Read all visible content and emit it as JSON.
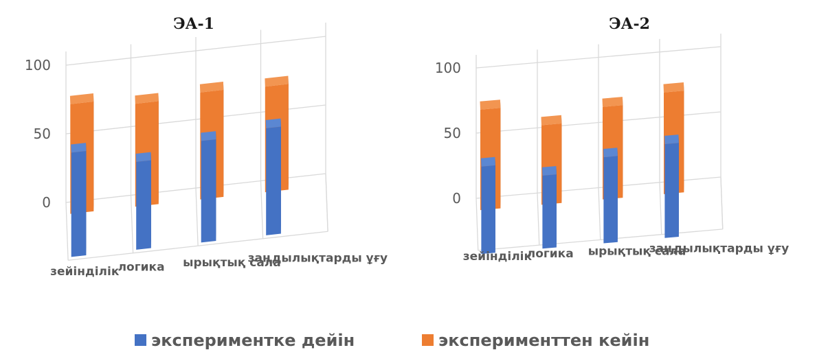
{
  "chart_data": [
    {
      "type": "bar",
      "title": "ЭА-1",
      "categories": [
        "зейінділік",
        "логика",
        "ырықтық сала",
        "заңдылықтарды ұғу"
      ],
      "series": [
        {
          "name": "экспериментке дейін",
          "values": [
            76,
            64,
            74,
            78
          ]
        },
        {
          "name": "эксперименттен кейін",
          "values": [
            80,
            75,
            78,
            77
          ]
        }
      ],
      "yticks": [
        0,
        50,
        100
      ],
      "ylim": [
        0,
        100
      ],
      "grid": true
    },
    {
      "type": "bar",
      "title": "ЭА-2",
      "categories": [
        "зейінділік",
        "логика",
        "ырықтық сала",
        "заңдылықтарды ұғу"
      ],
      "series": [
        {
          "name": "экспериментке дейін",
          "values": [
            67,
            56,
            66,
            72
          ]
        },
        {
          "name": "эксперименттен кейін",
          "values": [
            77,
            61,
            71,
            78
          ]
        }
      ],
      "yticks": [
        0,
        50,
        100
      ],
      "ylim": [
        0,
        100
      ],
      "grid": true
    }
  ],
  "legend": {
    "position": "bottom",
    "items": [
      {
        "label": "экспериментке дейін",
        "color": "#4472C4"
      },
      {
        "label": "эксперименттен кейін",
        "color": "#ED7D31"
      }
    ]
  }
}
